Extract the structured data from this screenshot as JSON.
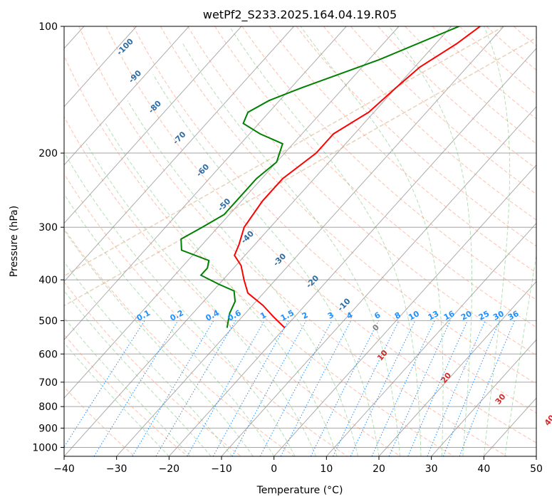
{
  "chart_data": {
    "type": "line",
    "subtype": "skew-t log-p diagram",
    "title": "wetPf2_S233.2025.164.04.19.R05",
    "xlabel": "Temperature (°C)",
    "ylabel": "Pressure (hPa)",
    "xlim": [
      -40,
      50
    ],
    "ylim": [
      1050,
      100
    ],
    "y_scale": "log",
    "x_ticks": [
      "−40",
      "−30",
      "−20",
      "−10",
      "0",
      "10",
      "20",
      "30",
      "40",
      "50"
    ],
    "x_tick_values": [
      -40,
      -30,
      -20,
      -10,
      0,
      10,
      20,
      30,
      40,
      50
    ],
    "y_ticks": [
      "100",
      "200",
      "300",
      "400",
      "500",
      "600",
      "700",
      "800",
      "900",
      "1000"
    ],
    "y_tick_values": [
      100,
      200,
      300,
      400,
      500,
      600,
      700,
      800,
      900,
      1000
    ],
    "grid": true,
    "colors": {
      "temperature": "#ff0000",
      "dewpoint": "#008000",
      "isotherm": "#808080",
      "dry_adiabat": "#ff8c69",
      "moist_adiabat": "#5cb85c",
      "mixing_ratio": "#1e90ff",
      "saturation_ice": "#d2a679",
      "isotherm_label": "#2e6da4",
      "mixing_ratio_label": "#1e90ff",
      "dry_adiabat_label": "#d62728",
      "zero_label": "#808080"
    },
    "isotherm_labels": [
      {
        "text": "-100",
        "p": 113,
        "t": -98
      },
      {
        "text": "-90",
        "p": 133,
        "t": -91
      },
      {
        "text": "-80",
        "p": 157,
        "t": -82
      },
      {
        "text": "-70",
        "p": 186,
        "t": -72
      },
      {
        "text": "-60",
        "p": 222,
        "t": -62
      },
      {
        "text": "-50",
        "p": 268,
        "t": -52
      },
      {
        "text": "-40",
        "p": 320,
        "t": -42
      },
      {
        "text": "-30",
        "p": 362,
        "t": -32
      },
      {
        "text": "-20",
        "p": 408,
        "t": -22
      },
      {
        "text": "-10",
        "p": 463,
        "t": -12
      },
      {
        "text": "0",
        "p": 525,
        "t": -2
      }
    ],
    "mixing_ratio_labels": [
      "0.1",
      "0.2",
      "0.4",
      "0.6",
      "1",
      "1.5",
      "2",
      "3",
      "4",
      "6",
      "8",
      "10",
      "13",
      "16",
      "20",
      "25",
      "30",
      "36"
    ],
    "mixing_ratio_values": [
      0.1,
      0.2,
      0.4,
      0.6,
      1,
      1.5,
      2,
      3,
      4,
      6,
      8,
      10,
      13,
      16,
      20,
      25,
      30,
      36
    ],
    "mixing_ratio_top_hpa": 500,
    "dry_adiabat_labels": [
      {
        "text": "10",
        "p": 610,
        "t": 4
      },
      {
        "text": "20",
        "p": 690,
        "t": 20
      },
      {
        "text": "30",
        "p": 775,
        "t": 34
      },
      {
        "text": "40",
        "p": 870,
        "t": 47
      }
    ],
    "series": [
      {
        "name": "temperature",
        "points": [
          [
            100,
            -34.5
          ],
          [
            110,
            -36
          ],
          [
            125,
            -39
          ],
          [
            140,
            -40
          ],
          [
            160,
            -41
          ],
          [
            180,
            -44
          ],
          [
            200,
            -44
          ],
          [
            230,
            -46
          ],
          [
            260,
            -46
          ],
          [
            300,
            -45
          ],
          [
            330,
            -43
          ],
          [
            350,
            -42
          ],
          [
            370,
            -39
          ],
          [
            400,
            -36
          ],
          [
            430,
            -33
          ],
          [
            460,
            -28
          ],
          [
            490,
            -24
          ],
          [
            520,
            -20
          ]
        ]
      },
      {
        "name": "dewpoint",
        "points": [
          [
            100,
            -38.5
          ],
          [
            120,
            -48
          ],
          [
            140,
            -58
          ],
          [
            150,
            -62
          ],
          [
            160,
            -64
          ],
          [
            170,
            -63
          ],
          [
            180,
            -58
          ],
          [
            190,
            -52
          ],
          [
            210,
            -50
          ],
          [
            230,
            -51
          ],
          [
            260,
            -51
          ],
          [
            280,
            -51
          ],
          [
            300,
            -53
          ],
          [
            320,
            -55
          ],
          [
            340,
            -53
          ],
          [
            360,
            -46
          ],
          [
            375,
            -45
          ],
          [
            390,
            -45
          ],
          [
            410,
            -40
          ],
          [
            425,
            -36
          ],
          [
            450,
            -34
          ],
          [
            480,
            -33
          ],
          [
            500,
            -32
          ],
          [
            520,
            -31
          ]
        ]
      }
    ]
  }
}
